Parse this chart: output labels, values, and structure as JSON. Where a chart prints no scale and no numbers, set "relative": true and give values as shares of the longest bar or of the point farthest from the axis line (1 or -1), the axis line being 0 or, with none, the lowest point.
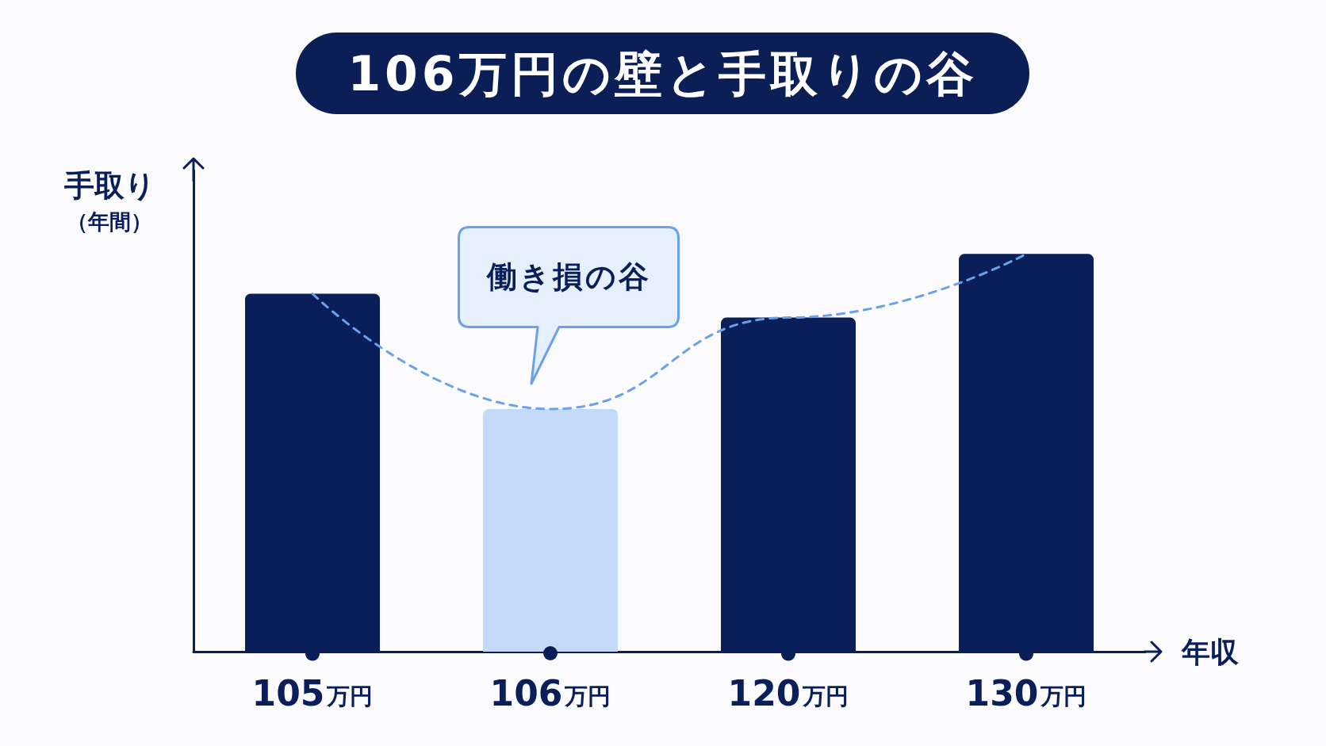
{
  "chart_data": {
    "type": "bar",
    "title": "106万円の壁と手取りの谷",
    "xlabel": "年収",
    "ylabel": "手取り（年間）",
    "categories": [
      "105万円",
      "106万円",
      "120万円",
      "130万円"
    ],
    "relative": true,
    "series": [
      {
        "colors": [
          "#0a1f5a",
          "#c5daf8",
          "#0a1f5a",
          "#0a1f5a"
        ],
        "values": [
          0.9,
          0.61,
          0.84,
          1
        ]
      },
      {
        "type": "line",
        "color": "#6ba1ea",
        "values": [
          0.9,
          0.61,
          0.84,
          1
        ]
      }
    ],
    "line_style": "dashed",
    "marker": "none",
    "annotations": [
      "働き損の谷"
    ]
  }
}
